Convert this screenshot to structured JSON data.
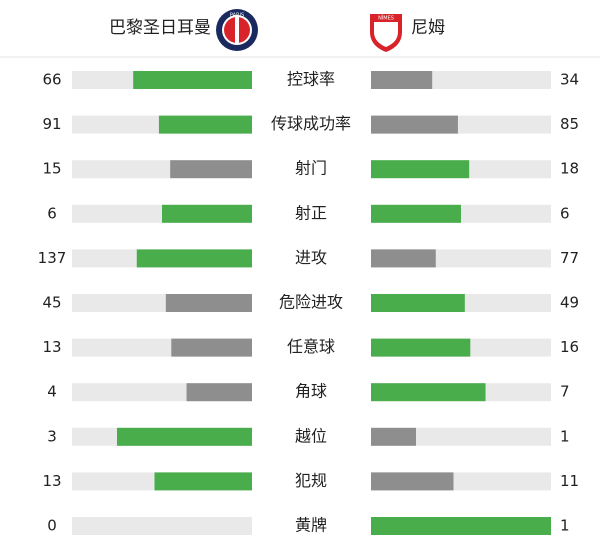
{
  "header": {
    "home": {
      "name": "巴黎圣日耳曼",
      "logo_text": "PARIS"
    },
    "away": {
      "name": "尼姆",
      "logo_text": "NÎMES"
    }
  },
  "colors": {
    "higher": "#49ad4c",
    "lower": "#8e8e8e",
    "track": "#e9e9e9"
  },
  "stats": [
    {
      "label": "控球率",
      "home": 66,
      "away": 34
    },
    {
      "label": "传球成功率",
      "home": 91,
      "away": 85
    },
    {
      "label": "射门",
      "home": 15,
      "away": 18
    },
    {
      "label": "射正",
      "home": 6,
      "away": 6
    },
    {
      "label": "进攻",
      "home": 137,
      "away": 77
    },
    {
      "label": "危险进攻",
      "home": 45,
      "away": 49
    },
    {
      "label": "任意球",
      "home": 13,
      "away": 16
    },
    {
      "label": "角球",
      "home": 4,
      "away": 7
    },
    {
      "label": "越位",
      "home": 3,
      "away": 1
    },
    {
      "label": "犯规",
      "home": 13,
      "away": 11
    },
    {
      "label": "黄牌",
      "home": 0,
      "away": 1
    }
  ]
}
